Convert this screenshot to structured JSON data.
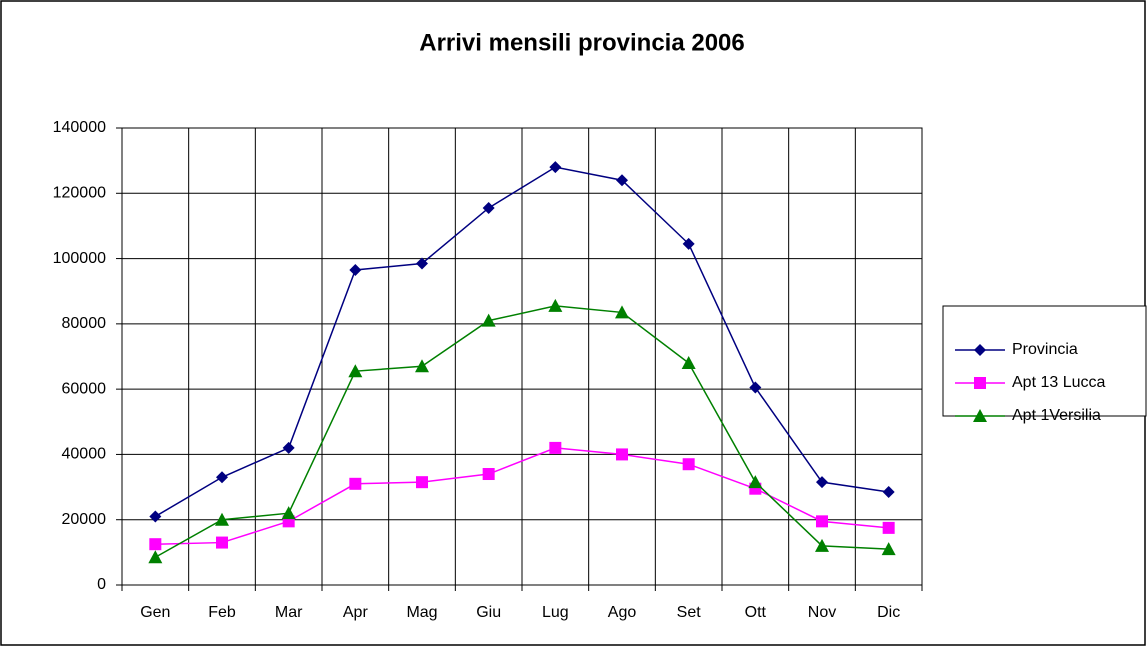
{
  "chart_data": {
    "type": "line",
    "title": "Arrivi mensili provincia 2006",
    "categories": [
      "Gen",
      "Feb",
      "Mar",
      "Apr",
      "Mag",
      "Giu",
      "Lug",
      "Ago",
      "Set",
      "Ott",
      "Nov",
      "Dic"
    ],
    "series": [
      {
        "name": "Provincia",
        "color": "#000080",
        "marker": "diamond",
        "values": [
          21000,
          33000,
          42000,
          96500,
          98500,
          115500,
          128000,
          124000,
          104500,
          60500,
          31500,
          28500
        ]
      },
      {
        "name": "Apt 13 Lucca",
        "color": "#ff00ff",
        "marker": "square",
        "values": [
          12500,
          13000,
          19500,
          31000,
          31500,
          34000,
          42000,
          40000,
          37000,
          29500,
          19500,
          17500
        ]
      },
      {
        "name": "Apt 1Versilia",
        "color": "#008000",
        "marker": "triangle",
        "values": [
          8500,
          20000,
          22000,
          65500,
          67000,
          81000,
          85500,
          83500,
          68000,
          31500,
          12000,
          11000
        ]
      }
    ],
    "ylim": [
      0,
      140000
    ],
    "yticks": [
      0,
      20000,
      40000,
      60000,
      80000,
      100000,
      120000,
      140000
    ],
    "grid": true,
    "legend": "right"
  }
}
